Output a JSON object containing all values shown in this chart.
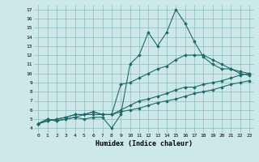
{
  "xlabel": "Humidex (Indice chaleur)",
  "ylabel": "",
  "bg_color": "#cce8e8",
  "line_color": "#1a6b6b",
  "xlim": [
    -0.5,
    23.5
  ],
  "ylim": [
    3.5,
    17.5
  ],
  "xticks": [
    0,
    1,
    2,
    3,
    4,
    5,
    6,
    7,
    8,
    9,
    10,
    11,
    12,
    13,
    14,
    15,
    16,
    17,
    18,
    19,
    20,
    21,
    22,
    23
  ],
  "yticks": [
    4,
    5,
    6,
    7,
    8,
    9,
    10,
    11,
    12,
    13,
    14,
    15,
    16,
    17
  ],
  "series": [
    [
      4.5,
      5.0,
      4.8,
      5.0,
      5.2,
      5.0,
      5.2,
      5.2,
      4.0,
      5.5,
      11.0,
      12.0,
      14.5,
      13.0,
      14.5,
      17.0,
      15.5,
      13.5,
      11.8,
      11.0,
      10.5,
      10.5,
      10.0,
      9.8
    ],
    [
      4.5,
      5.0,
      4.8,
      5.0,
      5.2,
      5.5,
      5.5,
      5.5,
      5.5,
      8.8,
      9.0,
      9.5,
      10.0,
      10.5,
      10.8,
      11.5,
      12.0,
      12.0,
      12.0,
      11.5,
      11.0,
      10.5,
      10.2,
      10.0
    ],
    [
      4.5,
      4.8,
      5.0,
      5.2,
      5.5,
      5.5,
      5.8,
      5.5,
      5.5,
      6.0,
      6.5,
      7.0,
      7.2,
      7.5,
      7.8,
      8.2,
      8.5,
      8.5,
      8.8,
      9.0,
      9.2,
      9.5,
      9.8,
      10.0
    ],
    [
      4.5,
      4.8,
      5.0,
      5.2,
      5.5,
      5.5,
      5.8,
      5.5,
      5.5,
      5.8,
      6.0,
      6.2,
      6.5,
      6.8,
      7.0,
      7.2,
      7.5,
      7.8,
      8.0,
      8.2,
      8.5,
      8.8,
      9.0,
      9.2
    ]
  ]
}
